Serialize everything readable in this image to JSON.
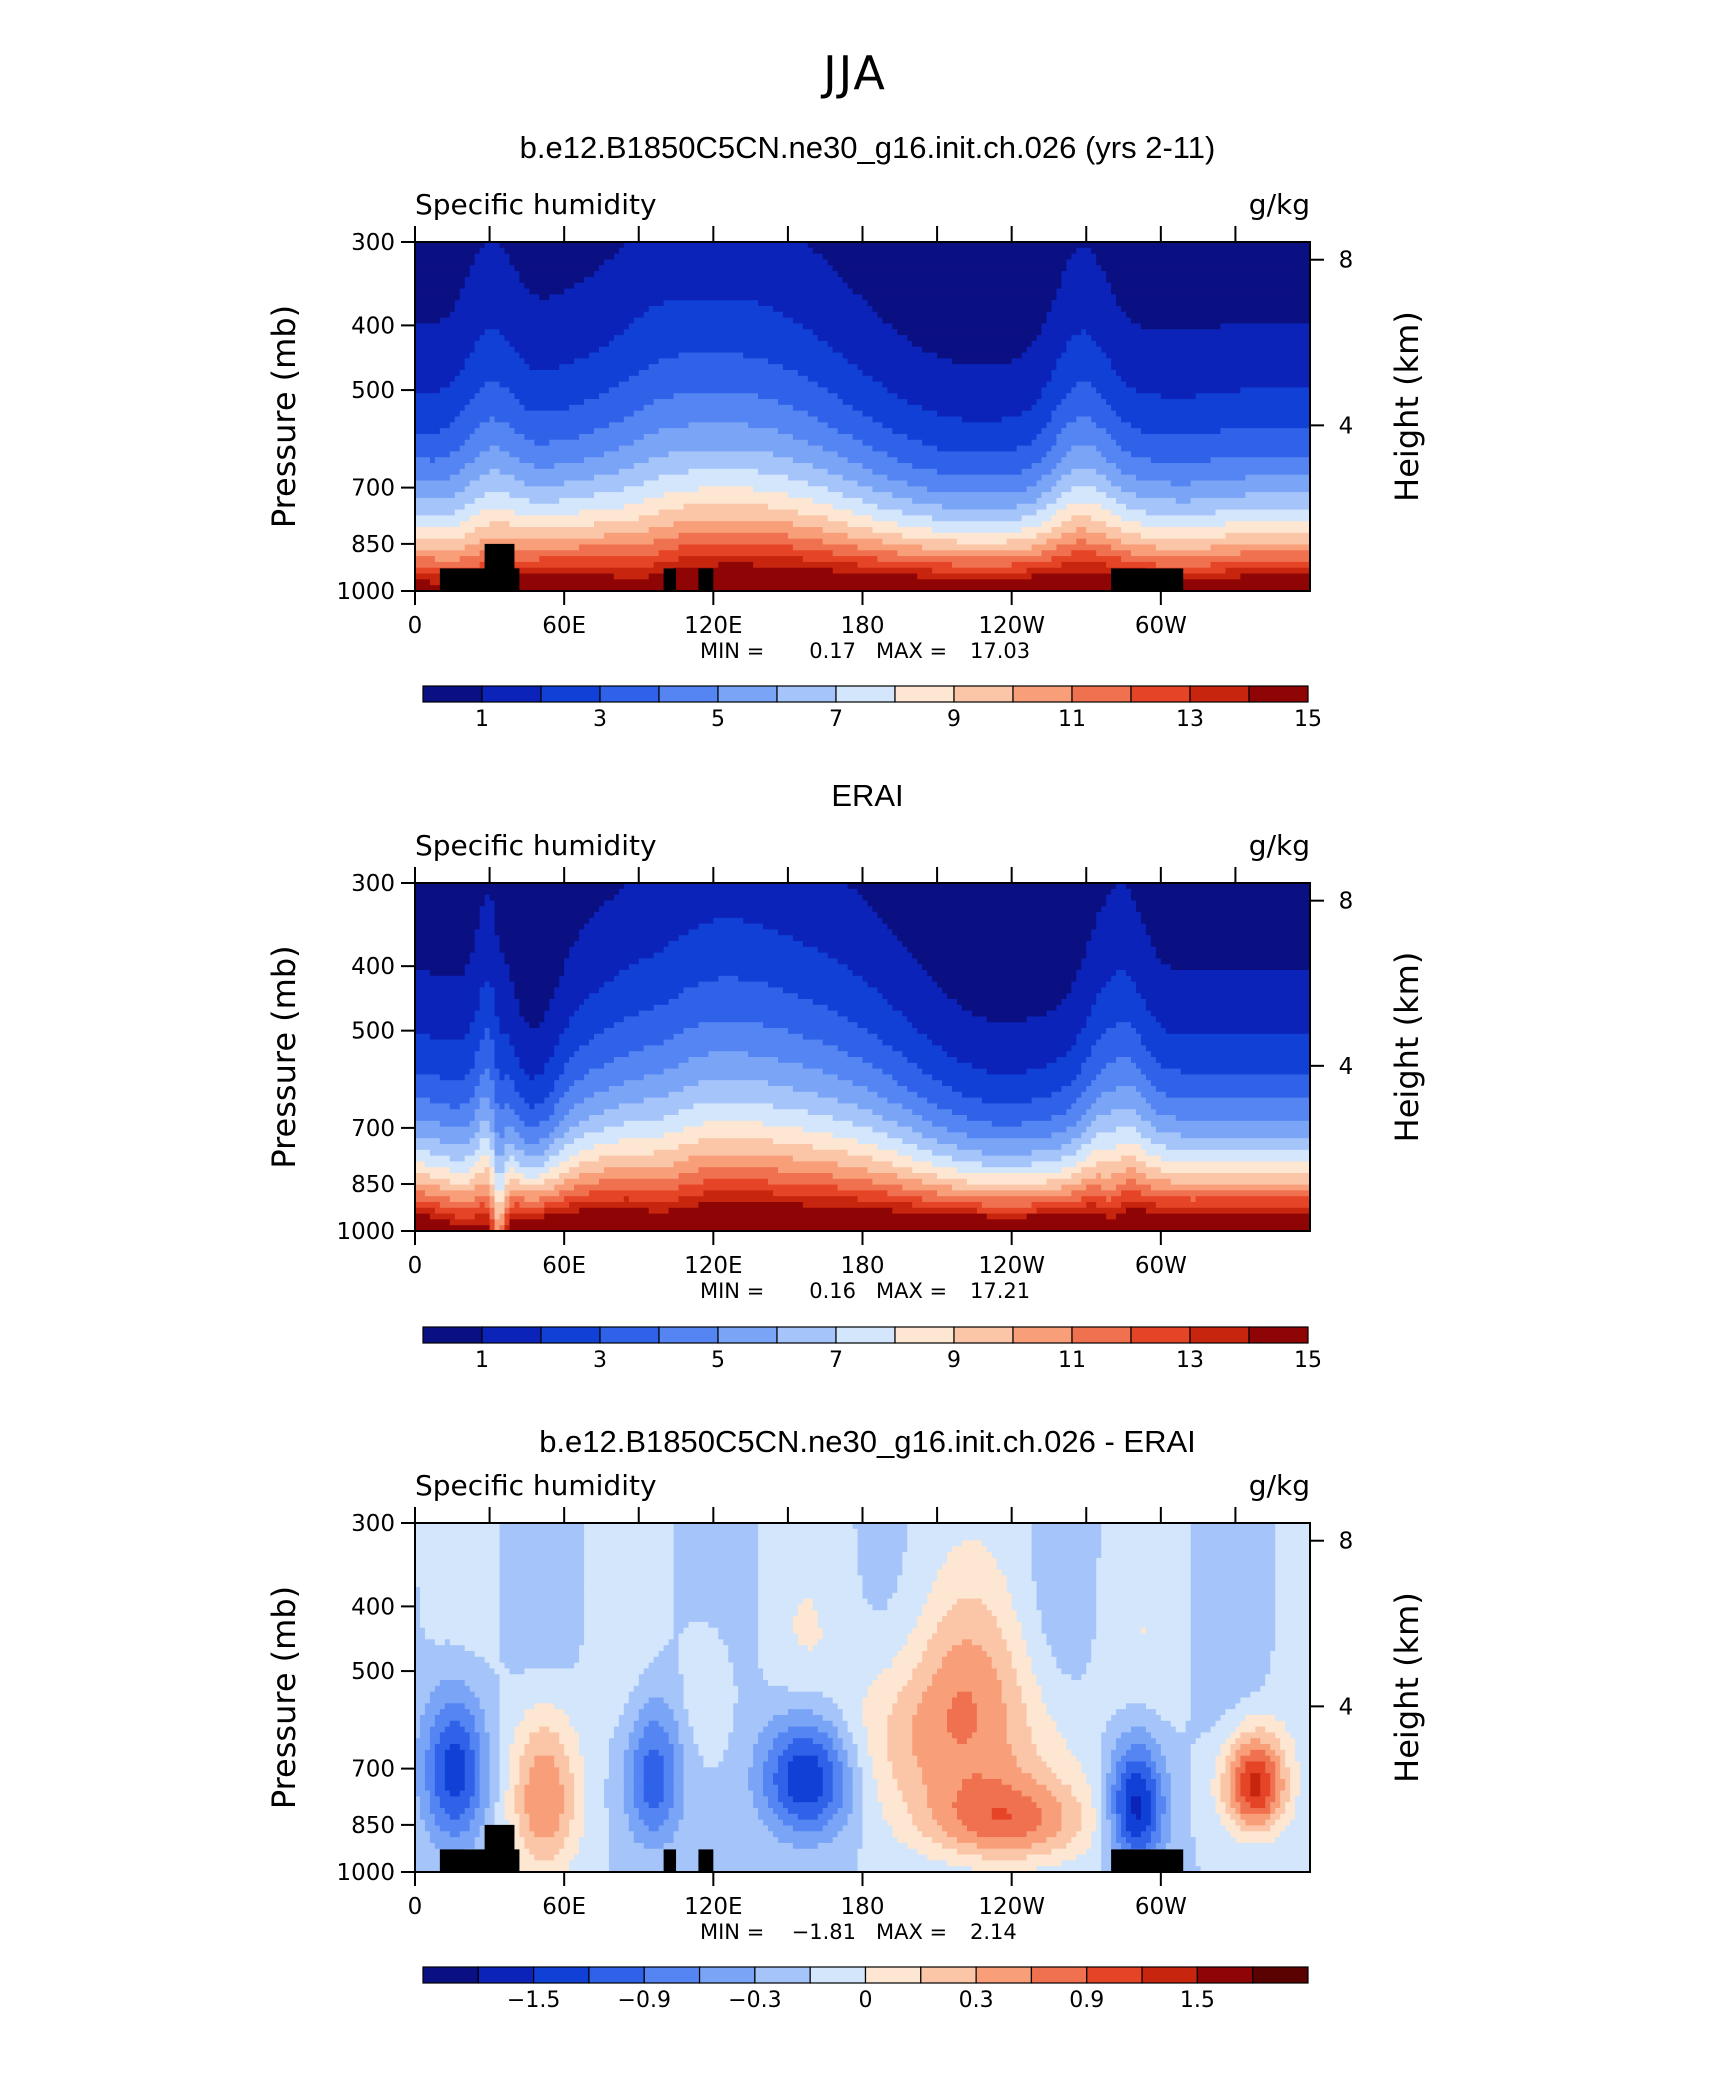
{
  "page_title": "JJA",
  "colors": {
    "palette13": [
      "#0a0f82",
      "#0b23b8",
      "#1040d6",
      "#2f62e8",
      "#5485f2",
      "#7aa4f6",
      "#a5c4fa",
      "#d3e6fb",
      "#fde6d2",
      "#fbc6a8",
      "#f89f7a",
      "#f0714f",
      "#e54426",
      "#c8250f",
      "#8f0404"
    ],
    "palette_diff": [
      "#0a0f82",
      "#0b23b8",
      "#1040d6",
      "#2f62e8",
      "#5485f2",
      "#7aa4f6",
      "#a5c4fa",
      "#d3e6fb",
      "#fde6d2",
      "#fbc6a8",
      "#f89f7a",
      "#f0714f",
      "#e54426",
      "#c8250f",
      "#8f0404",
      "#5a0202"
    ],
    "topography": "#000000"
  },
  "chart_data": [
    {
      "type": "contour",
      "title": "b.e12.B1850C5CN.ne30_g16.init.ch.026 (yrs 2-11)",
      "left_label": "Specific humidity",
      "right_label": "g/kg",
      "xlabel": "",
      "ylabel": "Pressure (mb)",
      "ylabel_right": "Height (km)",
      "x_ticks": [
        "0",
        "60E",
        "120E",
        "180",
        "120W",
        "60W"
      ],
      "y_ticks": [
        "300",
        "400",
        "500",
        "700",
        "850",
        "1000"
      ],
      "y_ticks_right": [
        "8",
        "4"
      ],
      "min_label": "MIN =",
      "min_value": "0.17",
      "max_label": "MAX =",
      "max_value": "17.03",
      "colorbar_labels": [
        "1",
        "3",
        "5",
        "7",
        "9",
        "11",
        "13",
        "15"
      ],
      "x_range_deg": [
        0,
        360
      ],
      "p_range_mb": [
        300,
        1000
      ],
      "kind": "model",
      "topo": [
        [
          10,
          42,
          925
        ],
        [
          28,
          40,
          850
        ],
        [
          100,
          105,
          925
        ],
        [
          114,
          120,
          925
        ],
        [
          280,
          309,
          925
        ]
      ]
    },
    {
      "type": "contour",
      "title": "ERAI",
      "left_label": "Specific humidity",
      "right_label": "g/kg",
      "xlabel": "",
      "ylabel": "Pressure (mb)",
      "ylabel_right": "Height (km)",
      "x_ticks": [
        "0",
        "60E",
        "120E",
        "180",
        "120W",
        "60W"
      ],
      "y_ticks": [
        "300",
        "400",
        "500",
        "700",
        "850",
        "1000"
      ],
      "y_ticks_right": [
        "8",
        "4"
      ],
      "min_label": "MIN =",
      "min_value": "0.16",
      "max_label": "MAX =",
      "max_value": "17.21",
      "colorbar_labels": [
        "1",
        "3",
        "5",
        "7",
        "9",
        "11",
        "13",
        "15"
      ],
      "x_range_deg": [
        0,
        360
      ],
      "p_range_mb": [
        300,
        1000
      ],
      "kind": "obs",
      "topo": []
    },
    {
      "type": "contour",
      "title": "b.e12.B1850C5CN.ne30_g16.init.ch.026 - ERAI",
      "left_label": "Specific humidity",
      "right_label": "g/kg",
      "xlabel": "",
      "ylabel": "Pressure (mb)",
      "ylabel_right": "Height (km)",
      "x_ticks": [
        "0",
        "60E",
        "120E",
        "180",
        "120W",
        "60W"
      ],
      "y_ticks": [
        "300",
        "400",
        "500",
        "700",
        "850",
        "1000"
      ],
      "y_ticks_right": [
        "8",
        "4"
      ],
      "min_label": "MIN =",
      "min_value": "−1.81",
      "max_label": "MAX =",
      "max_value": "2.14",
      "colorbar_labels": [
        "−1.5",
        "−0.9",
        "−0.3",
        "0",
        "0.3",
        "0.9",
        "1.5"
      ],
      "x_range_deg": [
        0,
        360
      ],
      "p_range_mb": [
        300,
        1000
      ],
      "kind": "diff",
      "topo": [
        [
          10,
          42,
          925
        ],
        [
          28,
          40,
          850
        ],
        [
          100,
          105,
          925
        ],
        [
          114,
          120,
          925
        ],
        [
          280,
          309,
          925
        ]
      ]
    }
  ]
}
